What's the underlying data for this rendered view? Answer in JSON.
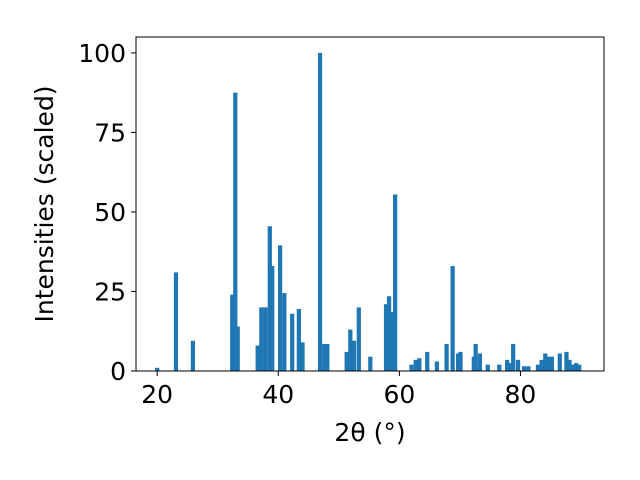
{
  "chart_data": {
    "type": "bar",
    "xlabel": "2θ (°)",
    "ylabel": "Intensities (scaled)",
    "xlim": [
      16.5,
      93.8
    ],
    "ylim": [
      0,
      105
    ],
    "xticks": [
      20,
      40,
      60,
      80
    ],
    "yticks": [
      0,
      25,
      50,
      75,
      100
    ],
    "bar_color": "#1f77b4",
    "bar_width": 0.7,
    "grid": false,
    "legend": "none",
    "x": [
      20.0,
      23.1,
      25.9,
      32.4,
      32.9,
      33.3,
      36.6,
      37.2,
      37.9,
      38.6,
      39.0,
      40.3,
      41.0,
      42.3,
      43.4,
      44.0,
      46.9,
      47.6,
      48.1,
      51.3,
      51.9,
      52.5,
      53.3,
      55.2,
      57.8,
      58.3,
      58.8,
      59.3,
      62.0,
      62.7,
      63.3,
      64.6,
      66.2,
      67.8,
      68.8,
      69.7,
      70.1,
      72.3,
      72.6,
      73.3,
      74.6,
      76.5,
      77.8,
      78.3,
      78.8,
      79.6,
      80.6,
      81.3,
      82.9,
      83.5,
      84.1,
      84.6,
      85.2,
      86.5,
      87.6,
      88.1,
      88.7,
      89.2,
      89.7
    ],
    "values": [
      1,
      31,
      9.5,
      24,
      87.5,
      14,
      8,
      20,
      20,
      45.5,
      33,
      39.5,
      24.5,
      18,
      19.5,
      9,
      100,
      8.5,
      8.5,
      6,
      13,
      9.5,
      20,
      4.5,
      21,
      23.5,
      18.5,
      55.5,
      2,
      3.5,
      4,
      6,
      3,
      8.5,
      33,
      5.5,
      6,
      4.5,
      8.5,
      5.5,
      2,
      2,
      3.5,
      2.5,
      8.5,
      3.5,
      1.5,
      1.5,
      2,
      3.5,
      5.5,
      4.5,
      4.5,
      5.5,
      6,
      3.5,
      2,
      2.5,
      2
    ]
  }
}
